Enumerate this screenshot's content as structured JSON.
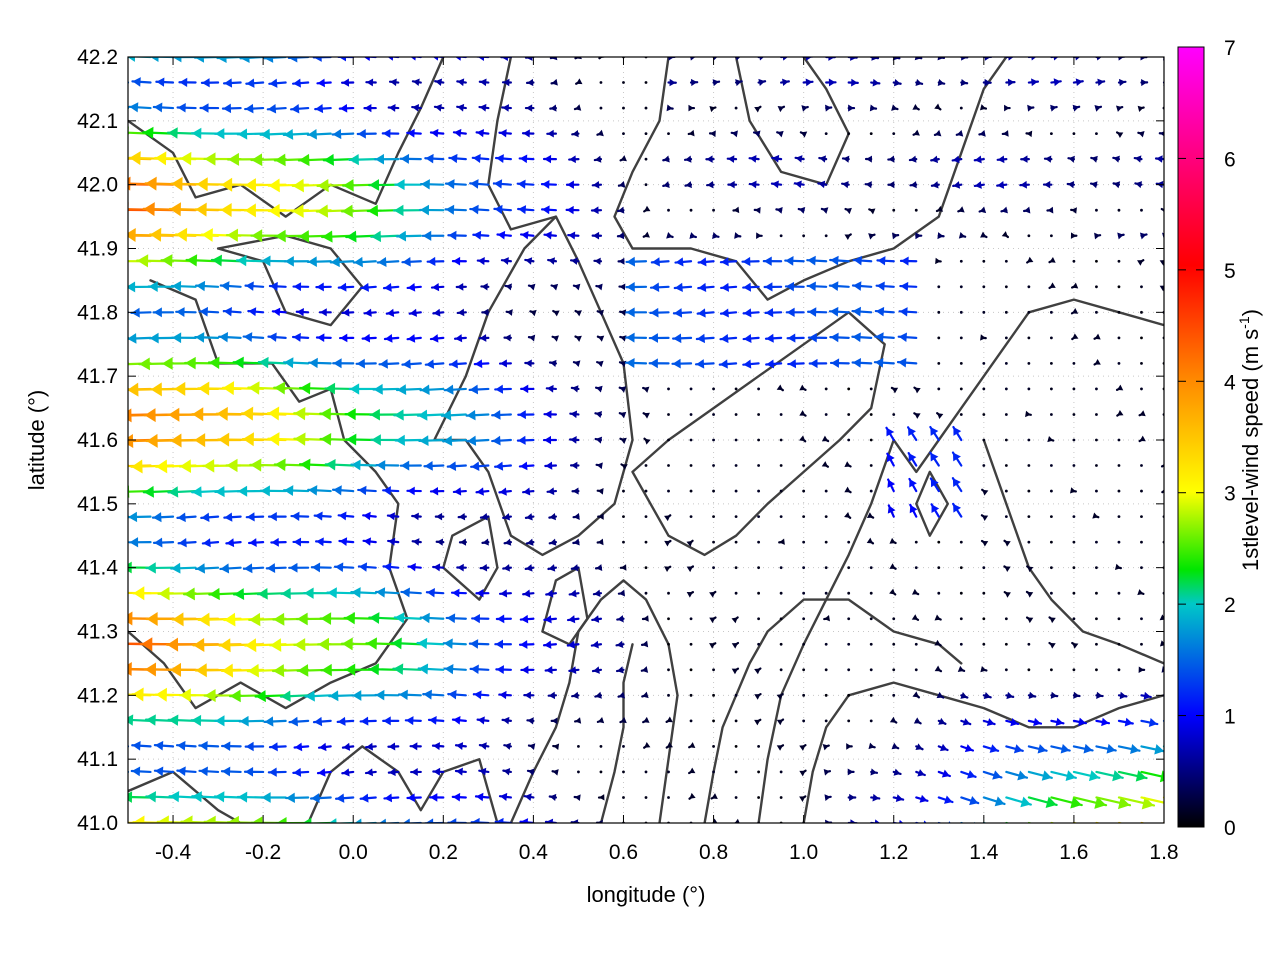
{
  "chart_data": {
    "type": "vector-field",
    "xlabel": "longitude (°)",
    "ylabel": "latitude (°)",
    "xlim": [
      -0.5,
      1.8
    ],
    "ylim": [
      41.0,
      42.2
    ],
    "xticks": [
      "-0.4",
      "-0.2",
      "0.0",
      "0.2",
      "0.4",
      "0.6",
      "0.8",
      "1.0",
      "1.2",
      "1.4",
      "1.6",
      "1.8"
    ],
    "xtick_values": [
      -0.4,
      -0.2,
      0.0,
      0.2,
      0.4,
      0.6,
      0.8,
      1.0,
      1.2,
      1.4,
      1.6,
      1.8
    ],
    "yticks": [
      "41.0",
      "41.1",
      "41.2",
      "41.3",
      "41.4",
      "41.5",
      "41.6",
      "41.7",
      "41.8",
      "41.9",
      "42.0",
      "42.1",
      "42.2"
    ],
    "ytick_values": [
      41.0,
      41.1,
      41.2,
      41.3,
      41.4,
      41.5,
      41.6,
      41.7,
      41.8,
      41.9,
      42.0,
      42.1,
      42.2
    ],
    "grid": true,
    "colorbar": {
      "label": "1stlevel-wind speed (m s",
      "label_sup": "-1",
      "label_close": ")",
      "range": [
        0,
        7
      ],
      "ticks": [
        "0",
        "1",
        "2",
        "3",
        "4",
        "5",
        "6",
        "7"
      ],
      "tick_values": [
        0,
        1,
        2,
        3,
        4,
        5,
        6,
        7
      ],
      "colors": [
        "#000000",
        "#0000ff",
        "#00c8c8",
        "#00e600",
        "#ffff00",
        "#ff8c00",
        "#ff0000",
        "#ff00ff"
      ]
    },
    "contours": [
      [
        [
          -0.45,
          41.85
        ],
        [
          -0.35,
          41.82
        ],
        [
          -0.3,
          41.72
        ],
        [
          -0.18,
          41.72
        ],
        [
          -0.12,
          41.66
        ],
        [
          -0.05,
          41.68
        ],
        [
          -0.02,
          41.6
        ],
        [
          0.05,
          41.55
        ],
        [
          0.1,
          41.5
        ],
        [
          0.08,
          41.4
        ],
        [
          0.12,
          41.32
        ],
        [
          0.05,
          41.25
        ],
        [
          -0.05,
          41.22
        ],
        [
          -0.15,
          41.18
        ],
        [
          -0.25,
          41.22
        ],
        [
          -0.35,
          41.18
        ],
        [
          -0.42,
          41.25
        ],
        [
          -0.5,
          41.3
        ]
      ],
      [
        [
          -0.5,
          42.1
        ],
        [
          -0.4,
          42.05
        ],
        [
          -0.35,
          41.98
        ],
        [
          -0.25,
          42.0
        ],
        [
          -0.15,
          41.95
        ],
        [
          -0.05,
          42.0
        ],
        [
          0.05,
          41.97
        ],
        [
          0.1,
          42.05
        ],
        [
          0.15,
          42.12
        ],
        [
          0.2,
          42.2
        ]
      ],
      [
        [
          -0.3,
          41.9
        ],
        [
          -0.2,
          41.88
        ],
        [
          -0.15,
          41.8
        ],
        [
          -0.05,
          41.78
        ],
        [
          0.02,
          41.84
        ],
        [
          -0.05,
          41.9
        ],
        [
          -0.15,
          41.92
        ],
        [
          -0.3,
          41.9
        ]
      ],
      [
        [
          0.18,
          41.6
        ],
        [
          0.25,
          41.7
        ],
        [
          0.3,
          41.8
        ],
        [
          0.38,
          41.9
        ],
        [
          0.45,
          41.95
        ],
        [
          0.5,
          41.88
        ],
        [
          0.55,
          41.8
        ],
        [
          0.6,
          41.72
        ],
        [
          0.62,
          41.6
        ],
        [
          0.58,
          41.5
        ],
        [
          0.5,
          41.45
        ],
        [
          0.42,
          41.42
        ],
        [
          0.35,
          41.45
        ],
        [
          0.3,
          41.55
        ],
        [
          0.25,
          41.6
        ],
        [
          0.18,
          41.6
        ]
      ],
      [
        [
          0.35,
          42.2
        ],
        [
          0.32,
          42.1
        ],
        [
          0.3,
          42.0
        ],
        [
          0.35,
          41.93
        ],
        [
          0.45,
          41.95
        ]
      ],
      [
        [
          0.7,
          42.2
        ],
        [
          0.68,
          42.1
        ],
        [
          0.62,
          42.02
        ],
        [
          0.58,
          41.95
        ],
        [
          0.62,
          41.9
        ],
        [
          0.75,
          41.9
        ],
        [
          0.85,
          41.88
        ],
        [
          0.92,
          41.82
        ],
        [
          1.0,
          41.85
        ],
        [
          1.1,
          41.88
        ],
        [
          1.2,
          41.9
        ],
        [
          1.3,
          41.95
        ],
        [
          1.35,
          42.05
        ],
        [
          1.4,
          42.15
        ],
        [
          1.45,
          42.2
        ]
      ],
      [
        [
          0.85,
          42.2
        ],
        [
          0.88,
          42.1
        ],
        [
          0.95,
          42.02
        ],
        [
          1.05,
          42.0
        ],
        [
          1.1,
          42.08
        ],
        [
          1.05,
          42.15
        ],
        [
          1.0,
          42.2
        ]
      ],
      [
        [
          0.62,
          41.55
        ],
        [
          0.7,
          41.6
        ],
        [
          0.8,
          41.65
        ],
        [
          0.9,
          41.7
        ],
        [
          1.0,
          41.75
        ],
        [
          1.1,
          41.8
        ],
        [
          1.18,
          41.75
        ],
        [
          1.15,
          41.65
        ],
        [
          1.08,
          41.6
        ],
        [
          1.0,
          41.55
        ],
        [
          0.92,
          41.5
        ],
        [
          0.85,
          41.45
        ],
        [
          0.78,
          41.42
        ],
        [
          0.7,
          41.45
        ],
        [
          0.62,
          41.55
        ]
      ],
      [
        [
          1.2,
          41.6
        ],
        [
          1.25,
          41.55
        ],
        [
          1.3,
          41.6
        ],
        [
          1.35,
          41.65
        ],
        [
          1.4,
          41.7
        ],
        [
          1.45,
          41.75
        ],
        [
          1.5,
          41.8
        ],
        [
          1.6,
          41.82
        ],
        [
          1.7,
          41.8
        ],
        [
          1.8,
          41.78
        ]
      ],
      [
        [
          1.2,
          41.6
        ],
        [
          1.15,
          41.5
        ],
        [
          1.1,
          41.42
        ],
        [
          1.05,
          41.35
        ],
        [
          1.0,
          41.28
        ],
        [
          0.95,
          41.2
        ],
        [
          0.92,
          41.1
        ],
        [
          0.9,
          41.0
        ]
      ],
      [
        [
          1.4,
          41.6
        ],
        [
          1.45,
          41.5
        ],
        [
          1.5,
          41.4
        ],
        [
          1.55,
          41.35
        ],
        [
          1.62,
          41.3
        ],
        [
          1.7,
          41.28
        ],
        [
          1.8,
          41.25
        ]
      ],
      [
        [
          0.35,
          41.0
        ],
        [
          0.4,
          41.08
        ],
        [
          0.45,
          41.15
        ],
        [
          0.48,
          41.22
        ],
        [
          0.5,
          41.3
        ],
        [
          0.55,
          41.35
        ],
        [
          0.6,
          41.38
        ],
        [
          0.65,
          41.35
        ],
        [
          0.7,
          41.28
        ],
        [
          0.72,
          41.2
        ],
        [
          0.7,
          41.1
        ],
        [
          0.68,
          41.0
        ]
      ],
      [
        [
          0.55,
          41.0
        ],
        [
          0.58,
          41.08
        ],
        [
          0.6,
          41.15
        ],
        [
          0.6,
          41.22
        ],
        [
          0.62,
          41.28
        ]
      ],
      [
        [
          0.78,
          41.0
        ],
        [
          0.8,
          41.08
        ],
        [
          0.82,
          41.15
        ],
        [
          0.85,
          41.2
        ],
        [
          0.88,
          41.25
        ],
        [
          0.92,
          41.3
        ],
        [
          1.0,
          41.35
        ],
        [
          1.1,
          41.35
        ],
        [
          1.2,
          41.3
        ],
        [
          1.3,
          41.28
        ],
        [
          1.35,
          41.25
        ]
      ],
      [
        [
          1.0,
          41.0
        ],
        [
          1.02,
          41.08
        ],
        [
          1.05,
          41.15
        ],
        [
          1.1,
          41.2
        ],
        [
          1.2,
          41.22
        ],
        [
          1.3,
          41.2
        ],
        [
          1.4,
          41.18
        ],
        [
          1.5,
          41.15
        ],
        [
          1.6,
          41.15
        ],
        [
          1.7,
          41.18
        ],
        [
          1.8,
          41.2
        ]
      ],
      [
        [
          -0.1,
          41.0
        ],
        [
          -0.05,
          41.08
        ],
        [
          0.02,
          41.12
        ],
        [
          0.1,
          41.08
        ],
        [
          0.15,
          41.02
        ],
        [
          0.2,
          41.08
        ],
        [
          0.28,
          41.1
        ],
        [
          0.3,
          41.05
        ],
        [
          0.32,
          41.0
        ]
      ],
      [
        [
          -0.5,
          41.05
        ],
        [
          -0.4,
          41.08
        ],
        [
          -0.3,
          41.02
        ],
        [
          -0.25,
          41.0
        ]
      ],
      [
        [
          0.42,
          41.3
        ],
        [
          0.45,
          41.38
        ],
        [
          0.5,
          41.4
        ],
        [
          0.52,
          41.32
        ],
        [
          0.48,
          41.28
        ],
        [
          0.42,
          41.3
        ]
      ],
      [
        [
          0.2,
          41.4
        ],
        [
          0.22,
          41.45
        ],
        [
          0.3,
          41.48
        ],
        [
          0.32,
          41.4
        ],
        [
          0.28,
          41.35
        ],
        [
          0.2,
          41.4
        ]
      ],
      [
        [
          1.25,
          41.5
        ],
        [
          1.28,
          41.55
        ],
        [
          1.32,
          41.5
        ],
        [
          1.28,
          41.45
        ],
        [
          1.25,
          41.5
        ]
      ]
    ]
  }
}
